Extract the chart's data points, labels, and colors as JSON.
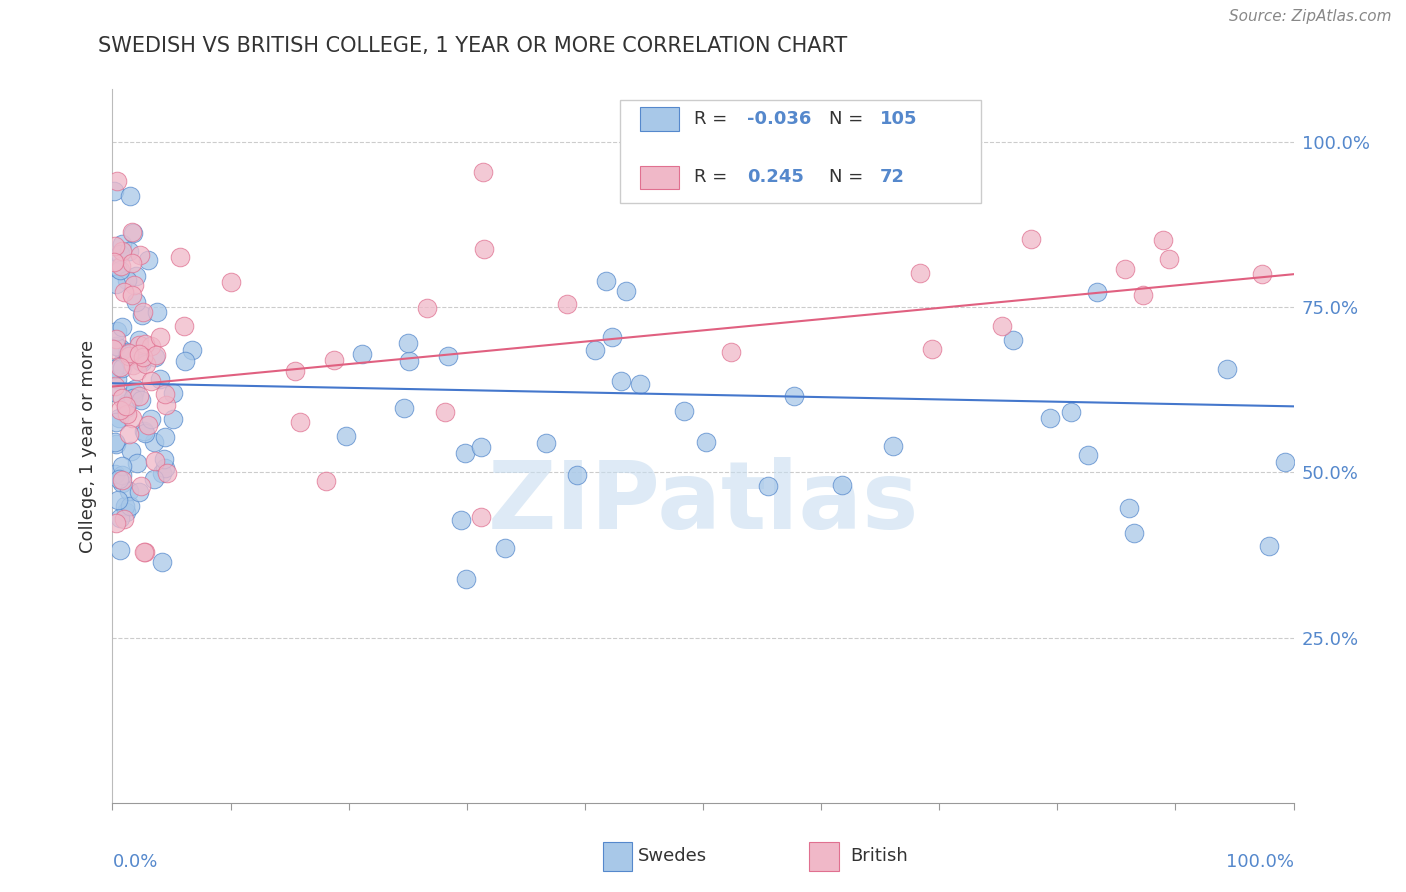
{
  "title": "SWEDISH VS BRITISH COLLEGE, 1 YEAR OR MORE CORRELATION CHART",
  "source": "Source: ZipAtlas.com",
  "ylabel": "College, 1 year or more",
  "blue_color": "#a8c8e8",
  "blue_edge_color": "#5588cc",
  "pink_color": "#f0b8c8",
  "pink_edge_color": "#e07090",
  "blue_line_color": "#4477cc",
  "pink_line_color": "#e06080",
  "right_label_color": "#5588cc",
  "watermark": "ZIPatlas",
  "watermark_color": "#c8ddf0",
  "blue_line_start": 0.635,
  "blue_line_end": 0.6,
  "pink_line_start": 0.63,
  "pink_line_end": 0.8,
  "xlim": [
    0.0,
    1.0
  ],
  "ylim": [
    0.0,
    1.08
  ],
  "seed": 99
}
